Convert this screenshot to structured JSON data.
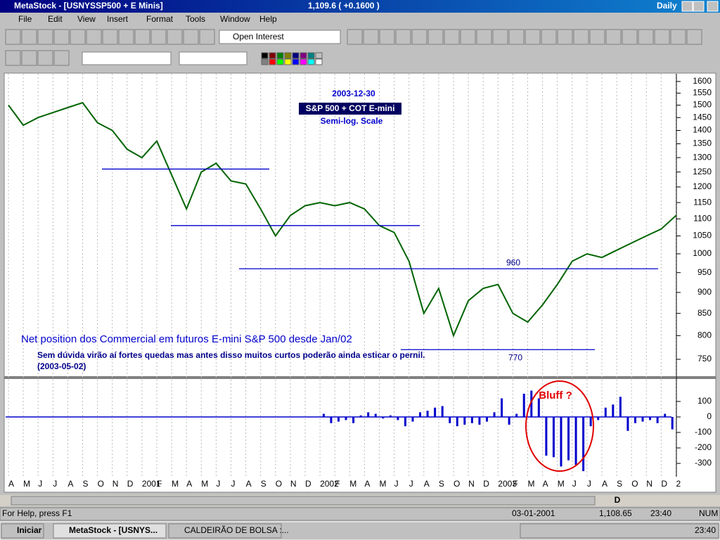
{
  "window": {
    "title": "MetaStock - [USNYSSP500 + E Minis]",
    "quote": "1,109.6 ( +0.1600 )",
    "period": "Daily"
  },
  "menu": [
    "File",
    "Edit",
    "View",
    "Insert",
    "Format",
    "Tools",
    "Window",
    "Help"
  ],
  "toolbar": {
    "indicator": "Open Interest"
  },
  "chart_data": [
    {
      "type": "line",
      "date": "2003-12-30",
      "title": "S&P 500 + COT E-mini",
      "subtitle": "Semi-log. Scale",
      "log_scale": true,
      "grid": true,
      "color": "#006400",
      "categories": [
        "A",
        "M",
        "J",
        "J",
        "A",
        "S",
        "O",
        "N",
        "D",
        "2001",
        "F",
        "M",
        "A",
        "M",
        "J",
        "J",
        "A",
        "S",
        "O",
        "N",
        "D",
        "2002",
        "F",
        "M",
        "A",
        "M",
        "J",
        "J",
        "A",
        "S",
        "O",
        "N",
        "D",
        "2003",
        "F",
        "M",
        "A",
        "M",
        "J",
        "J",
        "A",
        "S",
        "O",
        "N",
        "D",
        "2"
      ],
      "values": [
        1500,
        1420,
        1450,
        1470,
        1490,
        1510,
        1430,
        1400,
        1330,
        1300,
        1360,
        1240,
        1130,
        1250,
        1280,
        1220,
        1210,
        1130,
        1050,
        1110,
        1140,
        1150,
        1140,
        1150,
        1130,
        1080,
        1060,
        980,
        850,
        910,
        800,
        880,
        910,
        920,
        850,
        830,
        870,
        920,
        980,
        1000,
        990,
        1010,
        1030,
        1050,
        1070,
        1110
      ],
      "ylim": [
        719,
        1640
      ],
      "yticks": [
        750,
        800,
        850,
        900,
        950,
        1000,
        1050,
        1100,
        1150,
        1200,
        1250,
        1300,
        1350,
        1400,
        1450,
        1500,
        1550,
        1600
      ],
      "reference_lines": [
        1260,
        1080,
        960,
        770
      ],
      "annotations": [
        "Net position dos Commercial em futuros E-mini S&P 500 desde Jan/02",
        "Sem dúvida virão aí fortes quedas mas antes disso muitos curtos poderão ainda esticar o pernil.",
        "(2003-05-02)"
      ]
    },
    {
      "type": "bar",
      "color": "#0000cc",
      "annotation": "Bluff ?",
      "values": [
        20,
        -40,
        -30,
        -20,
        -40,
        10,
        30,
        20,
        -10,
        10,
        -20,
        -60,
        -30,
        30,
        40,
        60,
        70,
        -40,
        -60,
        -50,
        -40,
        -50,
        -30,
        30,
        120,
        -50,
        20,
        150,
        170,
        120,
        -250,
        -260,
        -320,
        -280,
        -310,
        -350,
        -60,
        -20,
        60,
        80,
        130,
        -90,
        -40,
        -30,
        -20,
        -40,
        20,
        -80
      ],
      "ylim": [
        -386,
        236
      ],
      "yticks": [
        100,
        0,
        -100,
        -200,
        -300
      ]
    }
  ],
  "scrollbar": {
    "button": "D"
  },
  "status": [
    "For Help, press F1",
    "03-01-2001",
    "1,108.65",
    "23:40",
    "NUM"
  ],
  "taskbar": {
    "start": "Iniciar",
    "tasks": [
      "MetaStock - [USNYS...",
      "CALDEIRÃO DE BOLSA :..."
    ],
    "clock": "23:40"
  }
}
